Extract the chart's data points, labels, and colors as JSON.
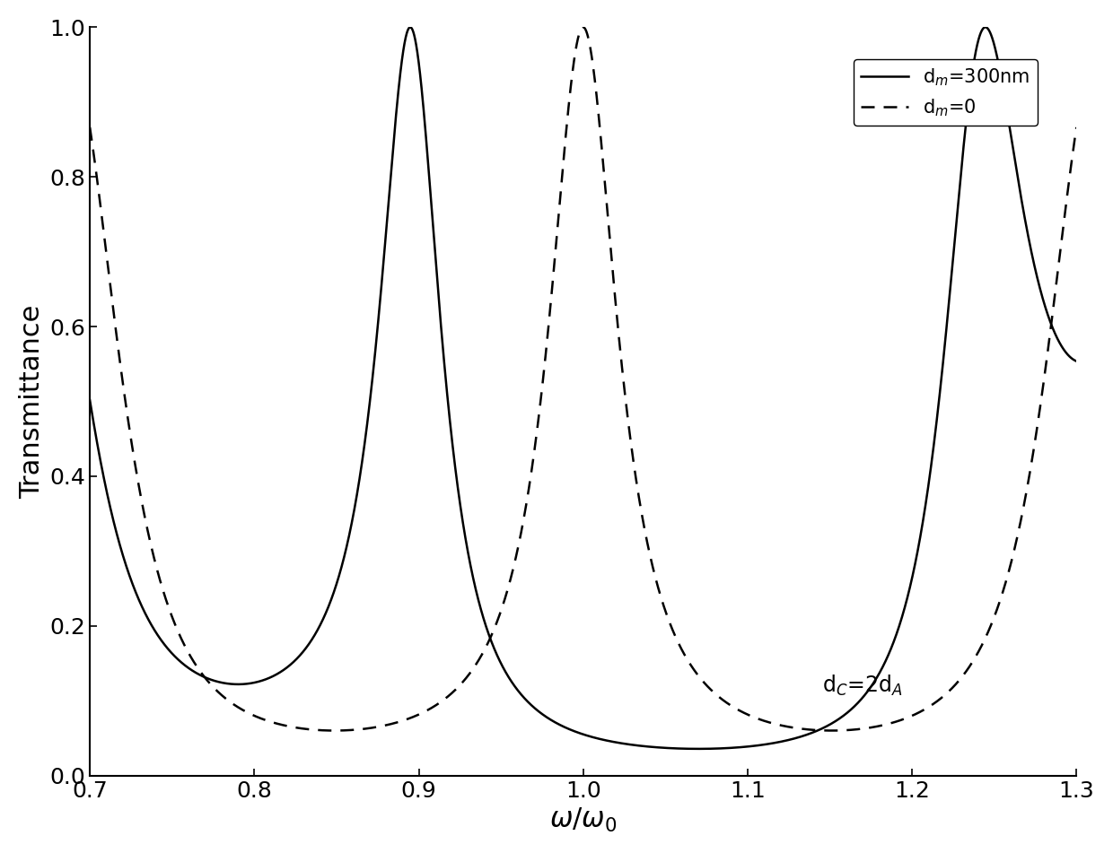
{
  "title": "",
  "xlabel": "$\\omega/\\omega_0$",
  "ylabel": "Transmittance",
  "xlim": [
    0.7,
    1.3
  ],
  "ylim": [
    0.0,
    1.0
  ],
  "xticks": [
    0.7,
    0.8,
    0.9,
    1.0,
    1.1,
    1.2,
    1.3
  ],
  "yticks": [
    0.0,
    0.2,
    0.4,
    0.6,
    0.8,
    1.0
  ],
  "line_solid_color": "#000000",
  "line_dashed_color": "#000000",
  "annotation": "d$_C$=2d$_A$",
  "legend_solid": "d$_m$=300nm",
  "legend_dashed": "d$_m$=0",
  "figsize": [
    12.4,
    9.51
  ],
  "dpi": 100
}
